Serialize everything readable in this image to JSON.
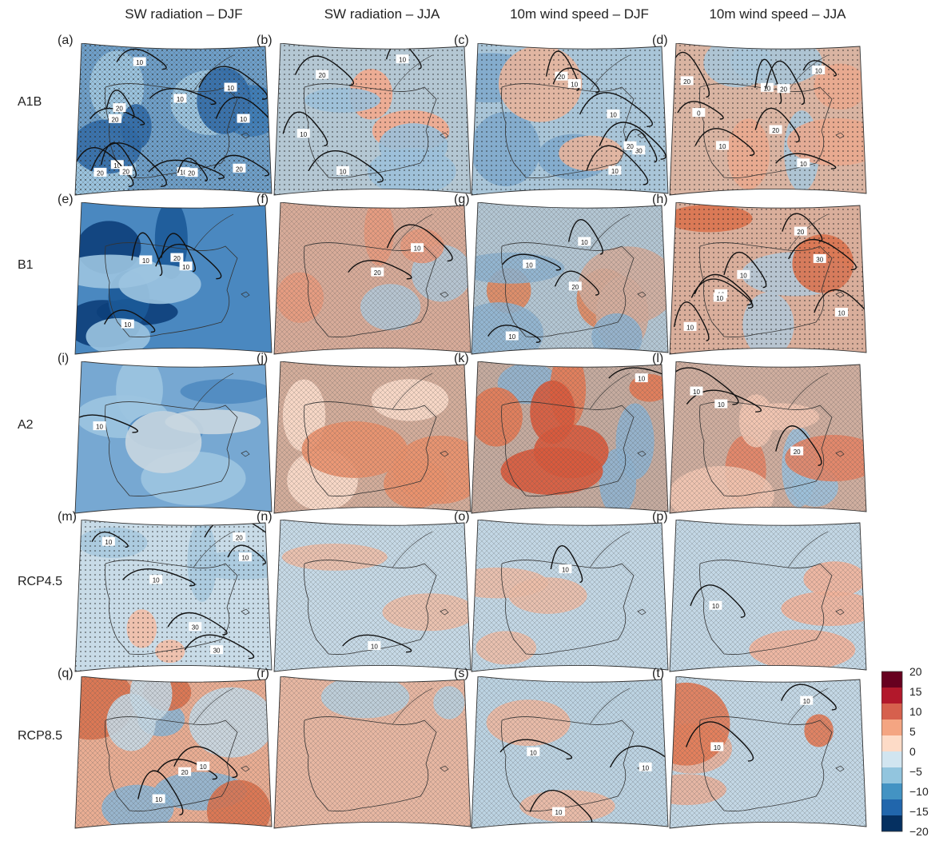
{
  "figure": {
    "columns": [
      "SW radiation – DJF",
      "SW radiation – JJA",
      "10m wind speed – DJF",
      "10m wind speed – JJA"
    ],
    "rows": [
      "A1B",
      "B1",
      "A2",
      "RCP4.5",
      "RCP8.5"
    ]
  },
  "colorbar": {
    "ticks": [
      "20",
      "15",
      "10",
      "5",
      "0",
      "−5",
      "−10",
      "−15",
      "−20"
    ],
    "colors": [
      "#67001f",
      "#b2182b",
      "#d6604d",
      "#f4a582",
      "#fddbc7",
      "#d1e5f0",
      "#92c5de",
      "#4393c3",
      "#2166ac",
      "#053061"
    ]
  },
  "panels": [
    {
      "label": "(a)",
      "base": "#6e9fc9",
      "patches": [
        "#3f7db8",
        "#9fc6e0",
        "#2f6aa8"
      ],
      "hatch": "mix",
      "contours": [
        "10",
        "20",
        "10",
        "10",
        "20",
        "10",
        "20",
        "20",
        "20",
        "10",
        "10",
        "20"
      ]
    },
    {
      "label": "(b)",
      "base": "#b4c7d3",
      "patches": [
        "#f2a98d",
        "#9cc0d9"
      ],
      "hatch": "dots",
      "contours": [
        "20",
        "10",
        "10",
        "10"
      ]
    },
    {
      "label": "(c)",
      "base": "#a9c5d8",
      "patches": [
        "#7fa9cc",
        "#e7b49c"
      ],
      "hatch": "dots",
      "contours": [
        "10",
        "30",
        "20",
        "10",
        "20",
        "10"
      ]
    },
    {
      "label": "(d)",
      "base": "#d9b4a2",
      "patches": [
        "#a9c5d8",
        "#e9a88e"
      ],
      "hatch": "dots",
      "contours": [
        "20",
        "0",
        "10",
        "20",
        "10",
        "10",
        "10",
        "20"
      ]
    },
    {
      "label": "(e)",
      "base": "#4a88c0",
      "patches": [
        "#0d3f7a",
        "#1c5a98",
        "#9cc4e0"
      ],
      "hatch": "none",
      "contours": [
        "20",
        "10",
        "10",
        "10"
      ]
    },
    {
      "label": "(f)",
      "base": "#d7ab99",
      "patches": [
        "#b2c7d6",
        "#e79a7e"
      ],
      "hatch": "xx",
      "contours": [
        "20",
        "10"
      ]
    },
    {
      "label": "(g)",
      "base": "#b3c6d3",
      "patches": [
        "#e0875f",
        "#d3ad9d",
        "#8fb3cf"
      ],
      "hatch": "xx",
      "contours": [
        "10",
        "10",
        "20",
        "10"
      ]
    },
    {
      "label": "(h)",
      "base": "#d9ae9b",
      "patches": [
        "#b2c7d6",
        "#d9734f"
      ],
      "hatch": "dots",
      "contours": [
        "10",
        "20",
        "10",
        "30",
        "10",
        "10",
        "10"
      ]
    },
    {
      "label": "(i)",
      "base": "#77a8d2",
      "patches": [
        "#9cc4e0",
        "#4f8ac0",
        "#c8d6e0"
      ],
      "hatch": "none",
      "contours": [
        "10"
      ]
    },
    {
      "label": "(j)",
      "base": "#d3ad9b",
      "patches": [
        "#fbdccb",
        "#e9916d"
      ],
      "hatch": "xx",
      "contours": []
    },
    {
      "label": "(k)",
      "base": "#c5ab9f",
      "patches": [
        "#8fb3cf",
        "#e27a55",
        "#d85a3c"
      ],
      "hatch": "xx",
      "contours": [
        "10"
      ]
    },
    {
      "label": "(l)",
      "base": "#cfae9f",
      "patches": [
        "#9cc0d9",
        "#e38466",
        "#f2c7b3"
      ],
      "hatch": "xx",
      "contours": [
        "10",
        "20",
        "10"
      ]
    },
    {
      "label": "(m)",
      "base": "#c8dbe7",
      "patches": [
        "#f2bea7",
        "#a9c9de"
      ],
      "hatch": "dots",
      "contours": [
        "30",
        "10",
        "30",
        "20",
        "10",
        "10"
      ]
    },
    {
      "label": "(n)",
      "base": "#c6d9e6",
      "patches": [
        "#ecbea9"
      ],
      "hatch": "xx",
      "contours": [
        "10"
      ]
    },
    {
      "label": "(o)",
      "base": "#c3d7e5",
      "patches": [
        "#ecbea9"
      ],
      "hatch": "xx",
      "contours": [
        "10"
      ]
    },
    {
      "label": "(p)",
      "base": "#c3d7e5",
      "patches": [
        "#f2b49b"
      ],
      "hatch": "xx",
      "contours": [
        "10"
      ]
    },
    {
      "label": "(q)",
      "base": "#e9ad93",
      "patches": [
        "#8fb6d4",
        "#d9724f",
        "#c6d9e6"
      ],
      "hatch": "xx",
      "contours": [
        "20",
        "10",
        "10"
      ]
    },
    {
      "label": "(r)",
      "base": "#e7b7a2",
      "patches": [
        "#b8cfde"
      ],
      "hatch": "xx",
      "contours": []
    },
    {
      "label": "(s)",
      "base": "#bcd3e2",
      "patches": [
        "#ecb8a2"
      ],
      "hatch": "xx",
      "contours": [
        "10",
        "10",
        "10"
      ]
    },
    {
      "label": "(t)",
      "base": "#c3d7e5",
      "patches": [
        "#e9b39c",
        "#e27a55"
      ],
      "hatch": "xx",
      "contours": [
        "10",
        "10"
      ]
    }
  ]
}
